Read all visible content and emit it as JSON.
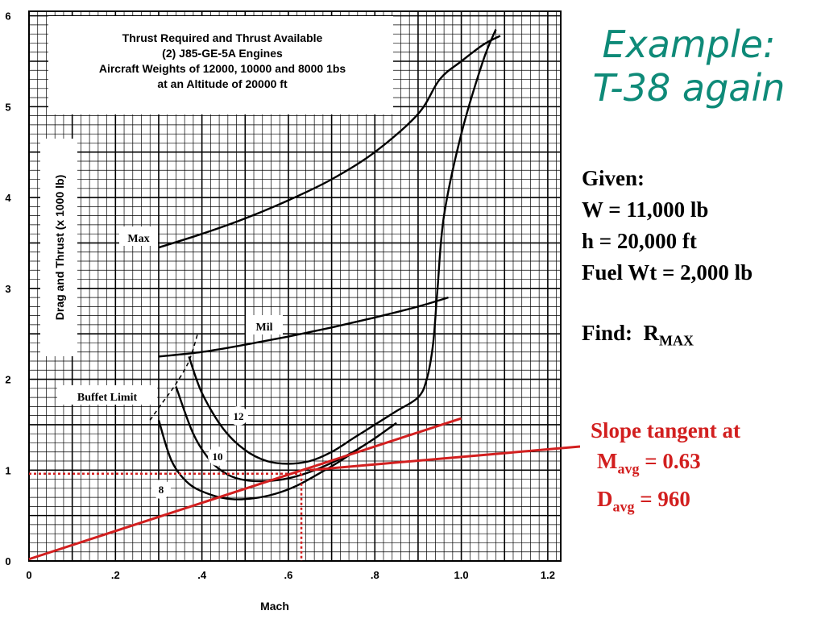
{
  "slide": {
    "title_line1": "Example:",
    "title_line2": "T-38 again"
  },
  "given": {
    "heading": "Given:",
    "w": "W = 11,000 lb",
    "h": "h = 20,000 ft",
    "fuel": "Fuel Wt = 2,000 lb",
    "find_label": "Find:",
    "find_symbol": "R",
    "find_sub": "MAX"
  },
  "annotation": {
    "line1": "Slope tangent at",
    "m_symbol": "M",
    "m_sub": "avg",
    "m_value": " = 0.63",
    "d_symbol": "D",
    "d_sub": "avg",
    "d_value": " = 960",
    "color": "#d21f1f"
  },
  "chart_data": {
    "type": "line",
    "title": [
      "Thrust Required and Thrust Available",
      "(2) J85-GE-5A Engines",
      "Aircraft Weights of 12000, 10000 and 8000 1bs",
      "at an Altitude of 20000 ft"
    ],
    "xlabel": "Mach",
    "ylabel": "Drag and Thrust (x 1000 lb)",
    "xlim": [
      0,
      1.23
    ],
    "ylim": [
      0,
      6.05
    ],
    "x_ticks": [
      0,
      0.2,
      0.4,
      0.6,
      0.8,
      1.0,
      1.2
    ],
    "x_tick_labels": [
      "0",
      ".2",
      ".4",
      ".6",
      ".8",
      "1.0",
      "1.2"
    ],
    "y_ticks": [
      0,
      1,
      2,
      3,
      4,
      5,
      6
    ],
    "y_tick_labels": [
      "0",
      "1",
      "2",
      "3",
      "4",
      "5",
      "6"
    ],
    "grid": true,
    "series": [
      {
        "name": "Max",
        "x": [
          0.3,
          0.4,
          0.5,
          0.6,
          0.7,
          0.8,
          0.9,
          0.95,
          1.0,
          1.05,
          1.09
        ],
        "y": [
          3.45,
          3.6,
          3.77,
          3.97,
          4.2,
          4.5,
          4.92,
          5.3,
          5.5,
          5.68,
          5.78
        ]
      },
      {
        "name": "Mil",
        "x": [
          0.3,
          0.4,
          0.5,
          0.6,
          0.7,
          0.8,
          0.9,
          0.97
        ],
        "y": [
          2.25,
          2.3,
          2.38,
          2.47,
          2.57,
          2.68,
          2.8,
          2.9
        ]
      },
      {
        "name": "12",
        "x": [
          0.37,
          0.4,
          0.45,
          0.5,
          0.55,
          0.6,
          0.65,
          0.7,
          0.75,
          0.8,
          0.85,
          0.9,
          0.92,
          0.935,
          0.945,
          0.96,
          1.0,
          1.05,
          1.08
        ],
        "y": [
          2.25,
          1.85,
          1.45,
          1.22,
          1.1,
          1.07,
          1.1,
          1.2,
          1.35,
          1.5,
          1.65,
          1.8,
          2.0,
          2.4,
          3.0,
          3.8,
          4.7,
          5.5,
          5.85
        ]
      },
      {
        "name": "10",
        "x": [
          0.34,
          0.38,
          0.42,
          0.46,
          0.5,
          0.55,
          0.6,
          0.65,
          0.7,
          0.75,
          0.8,
          0.85
        ],
        "y": [
          1.92,
          1.4,
          1.1,
          0.95,
          0.89,
          0.88,
          0.91,
          0.98,
          1.08,
          1.2,
          1.35,
          1.52
        ]
      },
      {
        "name": "8",
        "x": [
          0.3,
          0.33,
          0.37,
          0.42,
          0.47,
          0.52,
          0.57,
          0.62,
          0.67,
          0.72,
          0.77
        ],
        "y": [
          1.55,
          1.1,
          0.85,
          0.73,
          0.68,
          0.69,
          0.74,
          0.83,
          0.96,
          1.1,
          1.26
        ]
      },
      {
        "name": "Buffet Limit",
        "x": [
          0.28,
          0.31,
          0.34,
          0.37,
          0.39
        ],
        "y": [
          1.55,
          1.75,
          1.95,
          2.2,
          2.5
        ]
      }
    ],
    "curve_labels": [
      "Max",
      "Mil",
      "12",
      "10",
      "8",
      "Buffet Limit"
    ],
    "tangent_line": {
      "x": [
        0,
        1.0
      ],
      "y": [
        0.02,
        1.57
      ],
      "color": "#d21f1f"
    },
    "tangent_point": {
      "mach": 0.63,
      "drag_lb": 960
    }
  }
}
